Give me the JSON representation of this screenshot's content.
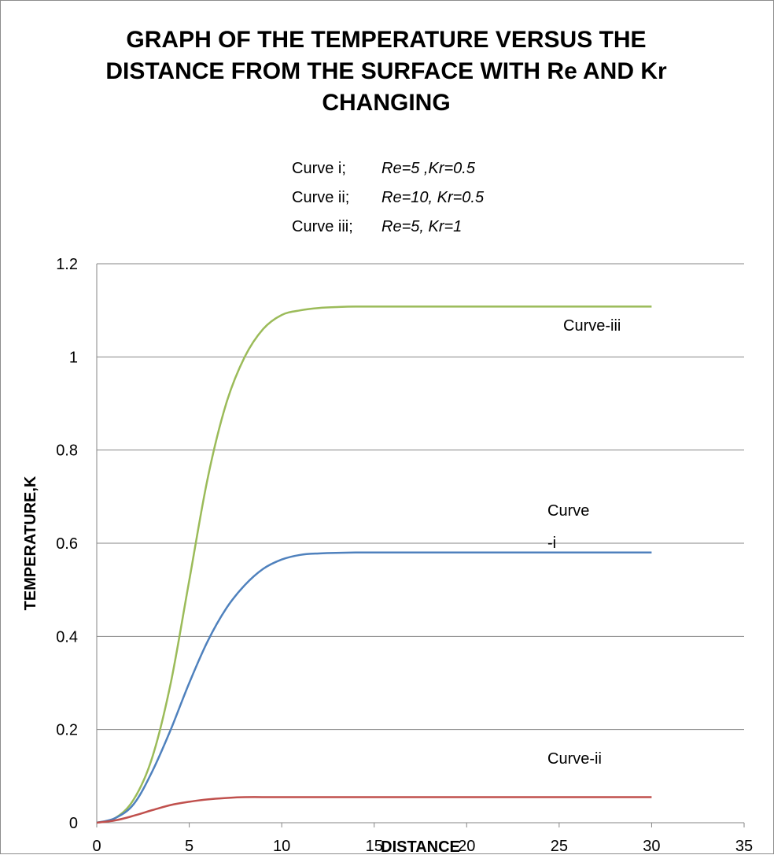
{
  "chart_data": {
    "type": "line",
    "title_lines": [
      "GRAPH OF  THE TEMPERATURE VERSUS THE",
      "DISTANCE FROM THE SURFACE WITH Re AND Kr",
      "CHANGING"
    ],
    "legend_notes": [
      {
        "label": "Curve i;",
        "params": "Re=5 ,Kr=0.5"
      },
      {
        "label": "Curve ii;",
        "params": "Re=10, Kr=0.5"
      },
      {
        "label": "Curve iii;",
        "params": "Re=5, Kr=1"
      }
    ],
    "xlabel": "DISTANCE",
    "ylabel": "TEMPERATURE,K",
    "xlim": [
      0,
      35
    ],
    "ylim": [
      0,
      1.2
    ],
    "x_ticks": [
      "0",
      "5",
      "10",
      "15",
      "20",
      "25",
      "30",
      "35"
    ],
    "y_ticks": [
      "0",
      "0.2",
      "0.4",
      "0.6",
      "0.8",
      "1",
      "1.2"
    ],
    "grid": "horizontal",
    "series": [
      {
        "name": "Curve-iii",
        "color": "#9bbb59",
        "curve_label_lines": [
          "Curve-iii"
        ],
        "x": [
          0,
          1,
          2,
          3,
          4,
          5,
          6,
          7,
          8,
          9,
          10,
          11,
          12,
          13,
          14,
          16,
          20,
          25,
          30
        ],
        "y": [
          0,
          0.01,
          0.05,
          0.14,
          0.3,
          0.52,
          0.74,
          0.9,
          1.0,
          1.06,
          1.09,
          1.1,
          1.105,
          1.107,
          1.108,
          1.108,
          1.108,
          1.108,
          1.108
        ]
      },
      {
        "name": "Curve -i",
        "color": "#4f81bd",
        "curve_label_lines": [
          "Curve",
          "-i"
        ],
        "x": [
          0,
          1,
          2,
          3,
          4,
          5,
          6,
          7,
          8,
          9,
          10,
          11,
          12,
          14,
          16,
          20,
          25,
          30
        ],
        "y": [
          0,
          0.01,
          0.04,
          0.11,
          0.2,
          0.3,
          0.39,
          0.46,
          0.51,
          0.545,
          0.565,
          0.575,
          0.578,
          0.58,
          0.58,
          0.58,
          0.58,
          0.58
        ]
      },
      {
        "name": "Curve-ii",
        "color": "#c0504d",
        "curve_label_lines": [
          "Curve-ii"
        ],
        "x": [
          0,
          1,
          2,
          3,
          4,
          5,
          6,
          7,
          8,
          10,
          15,
          20,
          25,
          30
        ],
        "y": [
          0,
          0.005,
          0.015,
          0.027,
          0.038,
          0.045,
          0.05,
          0.053,
          0.055,
          0.055,
          0.055,
          0.055,
          0.055,
          0.055
        ]
      }
    ]
  }
}
